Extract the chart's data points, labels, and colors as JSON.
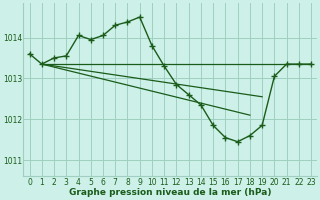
{
  "bg_color": "#cdf0e8",
  "grid_color": "#9ecfbf",
  "line_color": "#1a5c1a",
  "xlabel": "Graphe pression niveau de la mer (hPa)",
  "xlim": [
    -0.5,
    23.5
  ],
  "ylim": [
    1010.6,
    1014.85
  ],
  "yticks": [
    1011,
    1012,
    1013,
    1014
  ],
  "xticks": [
    0,
    1,
    2,
    3,
    4,
    5,
    6,
    7,
    8,
    9,
    10,
    11,
    12,
    13,
    14,
    15,
    16,
    17,
    18,
    19,
    20,
    21,
    22,
    23
  ],
  "series_main": {
    "x": [
      0,
      1,
      2,
      3,
      4,
      5,
      6,
      7,
      8,
      9,
      10,
      11,
      12,
      13,
      14,
      15,
      16,
      17,
      18,
      19,
      20,
      21,
      22,
      23
    ],
    "y": [
      1013.6,
      1013.35,
      1013.5,
      1013.55,
      1014.05,
      1013.95,
      1014.05,
      1014.3,
      1014.38,
      1014.5,
      1013.8,
      1013.3,
      1012.85,
      1012.6,
      1012.35,
      1011.85,
      1011.55,
      1011.45,
      1011.6,
      1011.85,
      1013.05,
      1013.35,
      1013.35,
      1013.35
    ]
  },
  "series_flat": {
    "x": [
      1,
      19,
      23
    ],
    "y": [
      1013.35,
      1013.35,
      1013.35
    ]
  },
  "series_diag1": {
    "x": [
      1,
      19
    ],
    "y": [
      1013.35,
      1012.55
    ]
  },
  "series_diag2": {
    "x": [
      1,
      18
    ],
    "y": [
      1013.35,
      1012.1
    ]
  }
}
